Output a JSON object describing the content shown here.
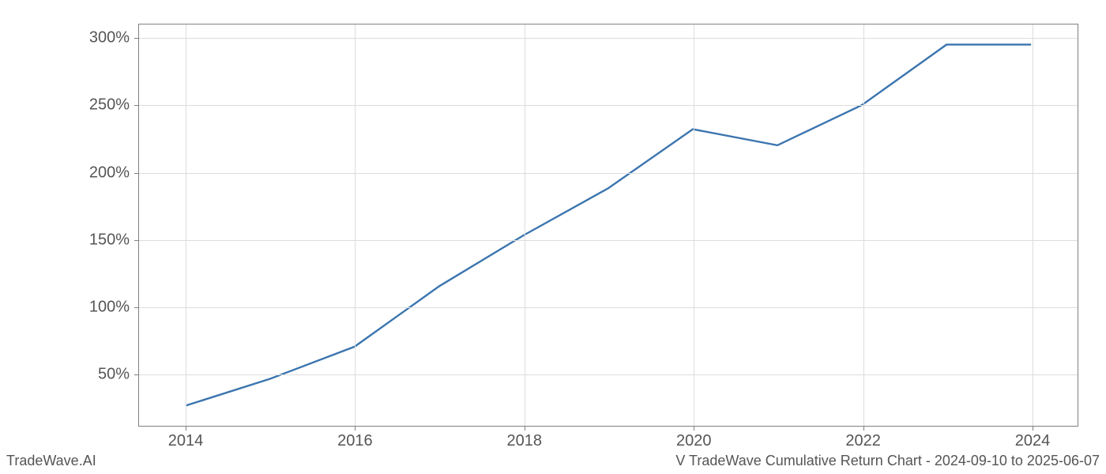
{
  "chart": {
    "type": "line",
    "x_values": [
      2014,
      2015,
      2016,
      2017,
      2018,
      2019,
      2020,
      2021,
      2022,
      2023,
      2024
    ],
    "y_values": [
      26,
      46,
      70,
      115,
      153,
      188,
      232,
      220,
      250,
      295,
      295
    ],
    "line_color": "#3b75af",
    "line_width": 2.4,
    "background_color": "#ffffff",
    "grid_color": "#dddddd",
    "border_color": "#808080",
    "xlim": [
      2013.45,
      2024.55
    ],
    "ylim": [
      11,
      310
    ],
    "x_ticks": [
      2014,
      2016,
      2018,
      2020,
      2022,
      2024
    ],
    "x_tick_labels": [
      "2014",
      "2016",
      "2018",
      "2020",
      "2022",
      "2024"
    ],
    "y_ticks": [
      50,
      100,
      150,
      200,
      250,
      300
    ],
    "y_tick_labels": [
      "50%",
      "100%",
      "150%",
      "200%",
      "250%",
      "300%"
    ],
    "tick_label_fontsize": 20,
    "tick_label_color": "#555555"
  },
  "footer": {
    "left_text": "TradeWave.AI",
    "right_text": "V TradeWave Cumulative Return Chart - 2024-09-10 to 2025-06-07",
    "fontsize": 18,
    "color": "#555555"
  }
}
